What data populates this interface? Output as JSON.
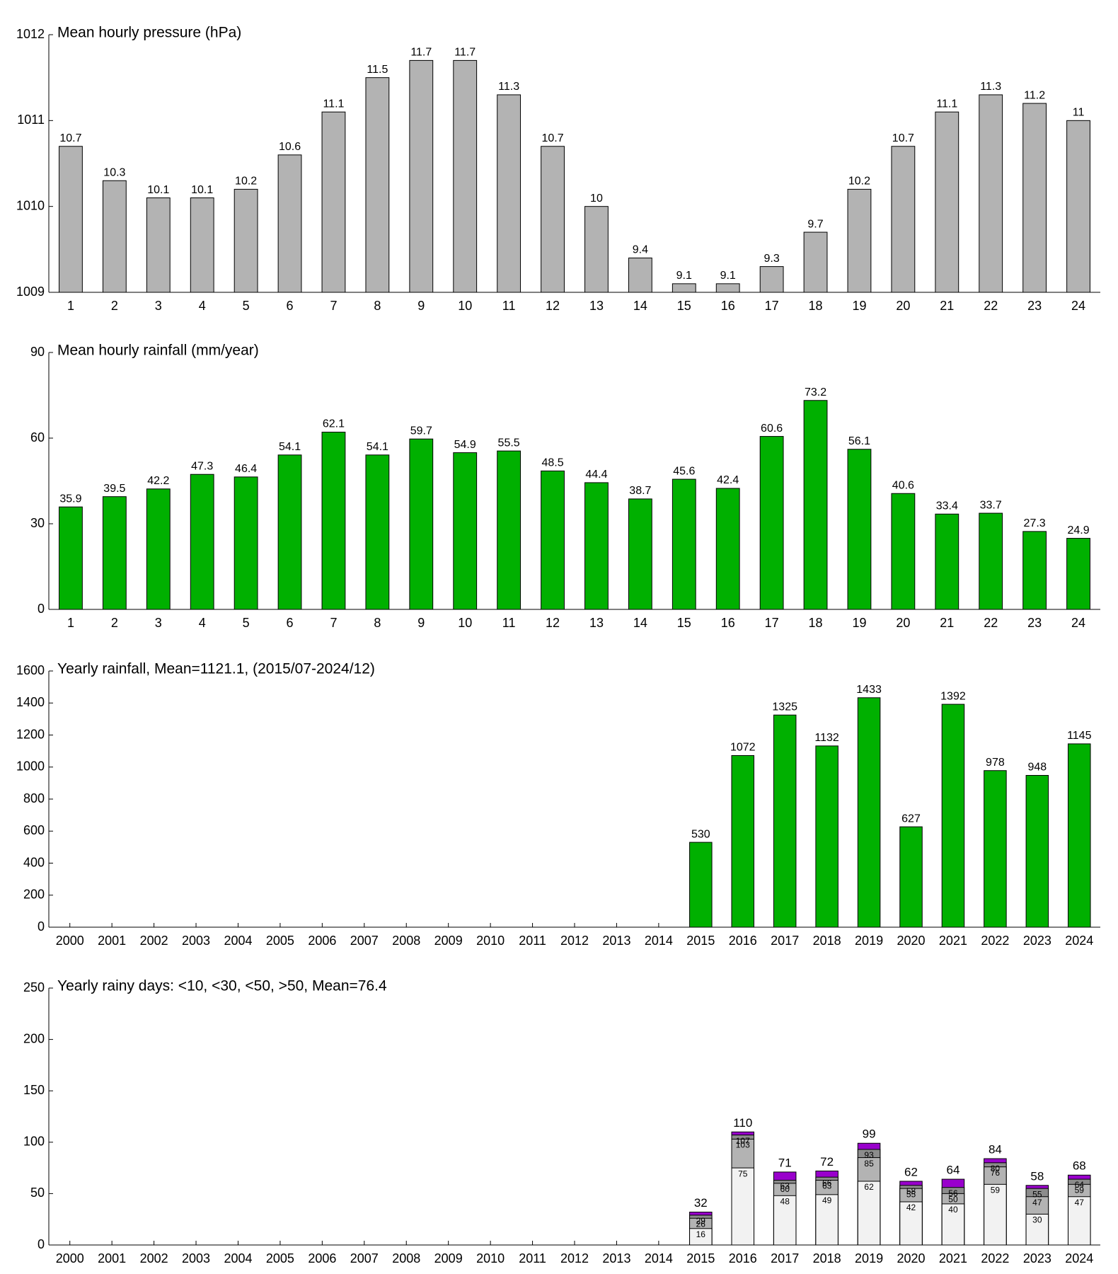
{
  "chart_data": [
    {
      "type": "bar",
      "title": "Mean hourly pressure (hPa)",
      "categories": [
        "1",
        "2",
        "3",
        "4",
        "5",
        "6",
        "7",
        "8",
        "9",
        "10",
        "11",
        "12",
        "13",
        "14",
        "15",
        "16",
        "17",
        "18",
        "19",
        "20",
        "21",
        "22",
        "23",
        "24"
      ],
      "values": [
        1010.7,
        1010.3,
        1010.1,
        1010.1,
        1010.2,
        1010.6,
        1011.1,
        1011.5,
        1011.7,
        1011.7,
        1011.3,
        1010.7,
        1010,
        1009.4,
        1009.1,
        1009.1,
        1009.3,
        1009.7,
        1010.2,
        1010.7,
        1011.1,
        1011.3,
        1011.2,
        1011
      ],
      "value_labels": [
        "10.7",
        "10.3",
        "10.1",
        "10.1",
        "10.2",
        "10.6",
        "11.1",
        "11.5",
        "11.7",
        "11.7",
        "11.3",
        "10.7",
        "10",
        "9.4",
        "9.1",
        "9.1",
        "9.3",
        "9.7",
        "10.2",
        "10.7",
        "11.1",
        "11.3",
        "11.2",
        "11"
      ],
      "color": "#b3b3b3",
      "ylim": [
        1009,
        1012
      ],
      "yticks": [
        1009,
        1010,
        1011,
        1012
      ]
    },
    {
      "type": "bar",
      "title": "Mean hourly rainfall (mm/year)",
      "categories": [
        "1",
        "2",
        "3",
        "4",
        "5",
        "6",
        "7",
        "8",
        "9",
        "10",
        "11",
        "12",
        "13",
        "14",
        "15",
        "16",
        "17",
        "18",
        "19",
        "20",
        "21",
        "22",
        "23",
        "24"
      ],
      "values": [
        35.9,
        39.5,
        42.2,
        47.3,
        46.4,
        54.1,
        62.1,
        54.1,
        59.7,
        54.9,
        55.5,
        48.5,
        44.4,
        38.7,
        45.6,
        42.4,
        60.6,
        73.2,
        56.1,
        40.6,
        33.4,
        33.7,
        27.3,
        24.9
      ],
      "color": "#00b000",
      "ylim": [
        0,
        90
      ],
      "yticks": [
        0,
        30,
        60,
        90
      ]
    },
    {
      "type": "bar",
      "title": "Yearly rainfall, Mean=1121.1, (2015/07-2024/12)",
      "categories": [
        "2000",
        "2001",
        "2002",
        "2003",
        "2004",
        "2005",
        "2006",
        "2007",
        "2008",
        "2009",
        "2010",
        "2011",
        "2012",
        "2013",
        "2014",
        "2015",
        "2016",
        "2017",
        "2018",
        "2019",
        "2020",
        "2021",
        "2022",
        "2023",
        "2024"
      ],
      "values": [
        null,
        null,
        null,
        null,
        null,
        null,
        null,
        null,
        null,
        null,
        null,
        null,
        null,
        null,
        null,
        530,
        1072,
        1325,
        1132,
        1433,
        627,
        1392,
        978,
        948,
        1145
      ],
      "color": "#00b000",
      "ylim": [
        0,
        1600
      ],
      "yticks": [
        0,
        200,
        400,
        600,
        800,
        1000,
        1200,
        1400,
        1600
      ]
    },
    {
      "type": "overlaid-bar",
      "title": "Yearly rainy days: <10, <30, <50, >50, Mean=76.4",
      "categories": [
        "2000",
        "2001",
        "2002",
        "2003",
        "2004",
        "2005",
        "2006",
        "2007",
        "2008",
        "2009",
        "2010",
        "2011",
        "2012",
        "2013",
        "2014",
        "2015",
        "2016",
        "2017",
        "2018",
        "2019",
        "2020",
        "2021",
        "2022",
        "2023",
        "2024"
      ],
      "series": [
        {
          "color": "#f2f2f2",
          "values": [
            null,
            null,
            null,
            null,
            null,
            null,
            null,
            null,
            null,
            null,
            null,
            null,
            null,
            null,
            null,
            16,
            75,
            48,
            49,
            62,
            42,
            40,
            59,
            30,
            47
          ]
        },
        {
          "color": "#b3b3b3",
          "values": [
            null,
            null,
            null,
            null,
            null,
            null,
            null,
            null,
            null,
            null,
            null,
            null,
            null,
            null,
            null,
            26,
            103,
            60,
            63,
            85,
            55,
            50,
            76,
            47,
            59
          ]
        },
        {
          "color": "#8c8c8c",
          "values": [
            null,
            null,
            null,
            null,
            null,
            null,
            null,
            null,
            null,
            null,
            null,
            null,
            null,
            null,
            null,
            29,
            107,
            63,
            66,
            93,
            58,
            56,
            80,
            55,
            64
          ]
        },
        {
          "color": "#9900cc",
          "values": [
            null,
            null,
            null,
            null,
            null,
            null,
            null,
            null,
            null,
            null,
            null,
            null,
            null,
            null,
            null,
            32,
            110,
            71,
            72,
            99,
            62,
            64,
            84,
            58,
            68
          ]
        }
      ],
      "ylim": [
        0,
        250
      ],
      "yticks": [
        0,
        50,
        100,
        150,
        200,
        250
      ]
    }
  ]
}
